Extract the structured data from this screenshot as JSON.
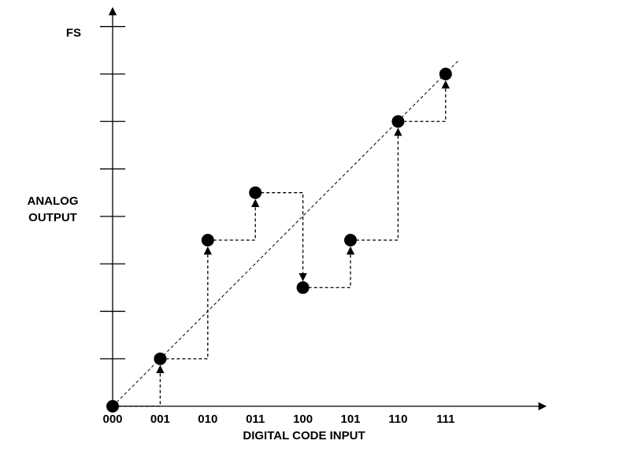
{
  "chart_data": {
    "type": "scatter",
    "x_label": "DIGITAL CODE INPUT",
    "y_label": "ANALOG OUTPUT",
    "categories": [
      "000",
      "001",
      "010",
      "011",
      "100",
      "101",
      "110",
      "111"
    ],
    "values": [
      0,
      1,
      3.5,
      4.5,
      2.5,
      3.5,
      6,
      7
    ],
    "color": "#000000",
    "ylim": [
      0,
      8.36
    ],
    "yticks": [
      1,
      2,
      3,
      4,
      5,
      6,
      7,
      {
        "value": 8,
        "label": "FS"
      }
    ],
    "grid": false
  }
}
